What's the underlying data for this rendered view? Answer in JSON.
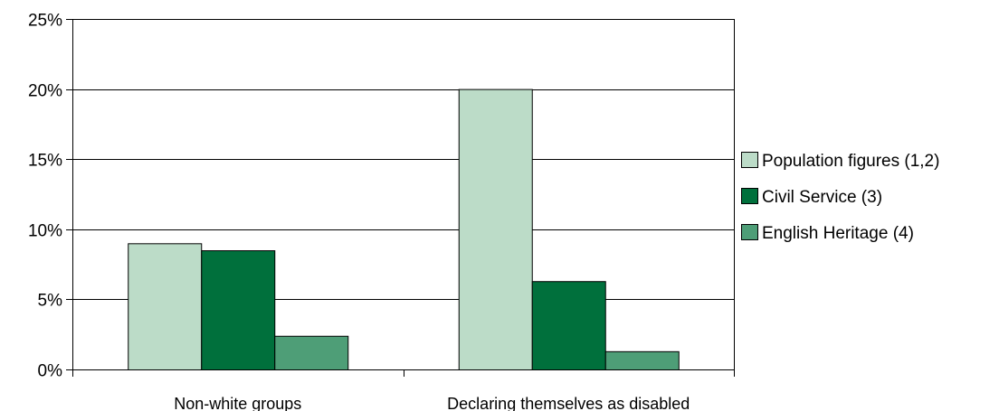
{
  "chart_data": {
    "type": "bar",
    "categories": [
      "Non-white groups",
      "Declaring themselves as disabled"
    ],
    "series": [
      {
        "name": "Population figures (1,2)",
        "values": [
          9.0,
          20.0
        ],
        "color": "#bcdcc8"
      },
      {
        "name": "Civil Service (3)",
        "values": [
          8.5,
          6.3
        ],
        "color": "#00703c"
      },
      {
        "name": "English Heritage (4)",
        "values": [
          2.4,
          1.3
        ],
        "color": "#4e9e77"
      }
    ],
    "ylim": [
      0,
      25
    ],
    "yticks": [
      0,
      5,
      10,
      15,
      20,
      25
    ],
    "ytick_labels": [
      "0%",
      "5%",
      "10%",
      "15%",
      "20%",
      "25%"
    ],
    "title": "",
    "xlabel": "",
    "ylabel": "",
    "grid": "horizontal",
    "legend_position": "right"
  }
}
